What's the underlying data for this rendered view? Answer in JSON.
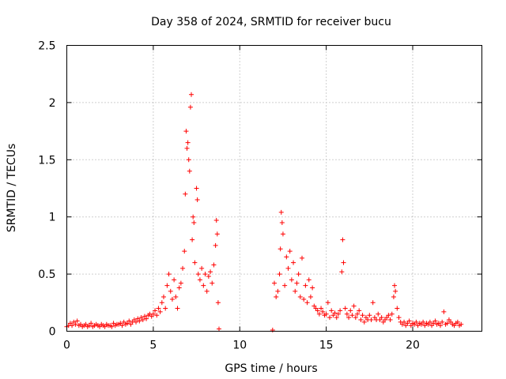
{
  "chart_data": {
    "type": "scatter",
    "title": "Day 358 of 2024, SRMTID for receiver bucu",
    "xlabel": "GPS time / hours",
    "ylabel": "SRMTID / TECUs",
    "xlim": [
      0,
      24
    ],
    "ylim": [
      0,
      2.5
    ],
    "xticks": [
      0,
      5,
      10,
      15,
      20
    ],
    "yticks": [
      0,
      0.5,
      1,
      1.5,
      2,
      2.5
    ],
    "xtick_labels": [
      "0",
      "5",
      "10",
      "15",
      "20"
    ],
    "ytick_labels": [
      "0",
      "0.5",
      "1",
      "1.5",
      "2",
      "2.5"
    ],
    "grid": true,
    "marker": "plus",
    "color": "#ff0000",
    "series": [
      {
        "points": [
          [
            0.0,
            0.04
          ],
          [
            0.1,
            0.05
          ],
          [
            0.2,
            0.07
          ],
          [
            0.3,
            0.05
          ],
          [
            0.4,
            0.08
          ],
          [
            0.5,
            0.06
          ],
          [
            0.6,
            0.09
          ],
          [
            0.7,
            0.05
          ],
          [
            0.8,
            0.06
          ],
          [
            0.9,
            0.04
          ],
          [
            1.0,
            0.05
          ],
          [
            1.1,
            0.06
          ],
          [
            1.2,
            0.04
          ],
          [
            1.3,
            0.05
          ],
          [
            1.4,
            0.07
          ],
          [
            1.5,
            0.04
          ],
          [
            1.6,
            0.05
          ],
          [
            1.7,
            0.06
          ],
          [
            1.8,
            0.05
          ],
          [
            1.9,
            0.04
          ],
          [
            2.0,
            0.06
          ],
          [
            2.1,
            0.05
          ],
          [
            2.2,
            0.04
          ],
          [
            2.3,
            0.06
          ],
          [
            2.4,
            0.05
          ],
          [
            2.5,
            0.05
          ],
          [
            2.6,
            0.04
          ],
          [
            2.7,
            0.07
          ],
          [
            2.8,
            0.05
          ],
          [
            2.9,
            0.06
          ],
          [
            3.0,
            0.06
          ],
          [
            3.1,
            0.07
          ],
          [
            3.2,
            0.05
          ],
          [
            3.3,
            0.08
          ],
          [
            3.4,
            0.06
          ],
          [
            3.5,
            0.07
          ],
          [
            3.6,
            0.09
          ],
          [
            3.7,
            0.06
          ],
          [
            3.8,
            0.08
          ],
          [
            3.9,
            0.1
          ],
          [
            4.0,
            0.08
          ],
          [
            4.1,
            0.11
          ],
          [
            4.2,
            0.09
          ],
          [
            4.3,
            0.12
          ],
          [
            4.4,
            0.1
          ],
          [
            4.5,
            0.13
          ],
          [
            4.6,
            0.11
          ],
          [
            4.7,
            0.14
          ],
          [
            4.8,
            0.15
          ],
          [
            4.9,
            0.13
          ],
          [
            5.0,
            0.15
          ],
          [
            5.1,
            0.18
          ],
          [
            5.2,
            0.14
          ],
          [
            5.3,
            0.2
          ],
          [
            5.4,
            0.17
          ],
          [
            5.5,
            0.25
          ],
          [
            5.6,
            0.3
          ],
          [
            5.7,
            0.2
          ],
          [
            5.8,
            0.4
          ],
          [
            5.9,
            0.5
          ],
          [
            6.0,
            0.35
          ],
          [
            6.1,
            0.28
          ],
          [
            6.2,
            0.45
          ],
          [
            6.3,
            0.3
          ],
          [
            6.4,
            0.2
          ],
          [
            6.5,
            0.38
          ],
          [
            6.6,
            0.42
          ],
          [
            6.7,
            0.55
          ],
          [
            6.8,
            0.7
          ],
          [
            6.85,
            1.2
          ],
          [
            6.9,
            1.75
          ],
          [
            6.95,
            1.6
          ],
          [
            7.0,
            1.65
          ],
          [
            7.05,
            1.5
          ],
          [
            7.1,
            1.4
          ],
          [
            7.15,
            1.96
          ],
          [
            7.2,
            2.07
          ],
          [
            7.25,
            0.8
          ],
          [
            7.3,
            1.0
          ],
          [
            7.35,
            0.95
          ],
          [
            7.4,
            0.6
          ],
          [
            7.5,
            1.25
          ],
          [
            7.55,
            1.15
          ],
          [
            7.6,
            0.5
          ],
          [
            7.7,
            0.45
          ],
          [
            7.8,
            0.55
          ],
          [
            7.9,
            0.4
          ],
          [
            8.0,
            0.5
          ],
          [
            8.1,
            0.35
          ],
          [
            8.2,
            0.48
          ],
          [
            8.3,
            0.52
          ],
          [
            8.4,
            0.42
          ],
          [
            8.5,
            0.58
          ],
          [
            8.6,
            0.75
          ],
          [
            8.65,
            0.97
          ],
          [
            8.7,
            0.85
          ],
          [
            8.75,
            0.25
          ],
          [
            8.8,
            0.02
          ],
          [
            11.9,
            0.01
          ],
          [
            12.0,
            0.42
          ],
          [
            12.1,
            0.3
          ],
          [
            12.2,
            0.35
          ],
          [
            12.3,
            0.5
          ],
          [
            12.35,
            0.72
          ],
          [
            12.4,
            1.04
          ],
          [
            12.45,
            0.95
          ],
          [
            12.5,
            0.85
          ],
          [
            12.6,
            0.4
          ],
          [
            12.7,
            0.65
          ],
          [
            12.8,
            0.55
          ],
          [
            12.9,
            0.7
          ],
          [
            13.0,
            0.45
          ],
          [
            13.1,
            0.6
          ],
          [
            13.2,
            0.35
          ],
          [
            13.3,
            0.42
          ],
          [
            13.4,
            0.5
          ],
          [
            13.5,
            0.3
          ],
          [
            13.6,
            0.64
          ],
          [
            13.7,
            0.28
          ],
          [
            13.8,
            0.4
          ],
          [
            13.9,
            0.25
          ],
          [
            14.0,
            0.45
          ],
          [
            14.1,
            0.3
          ],
          [
            14.2,
            0.38
          ],
          [
            14.3,
            0.22
          ],
          [
            14.4,
            0.2
          ],
          [
            14.5,
            0.18
          ],
          [
            14.6,
            0.15
          ],
          [
            14.7,
            0.2
          ],
          [
            14.8,
            0.17
          ],
          [
            14.9,
            0.14
          ],
          [
            15.0,
            0.15
          ],
          [
            15.1,
            0.25
          ],
          [
            15.2,
            0.12
          ],
          [
            15.3,
            0.18
          ],
          [
            15.4,
            0.14
          ],
          [
            15.5,
            0.16
          ],
          [
            15.6,
            0.12
          ],
          [
            15.7,
            0.15
          ],
          [
            15.8,
            0.18
          ],
          [
            15.9,
            0.52
          ],
          [
            15.95,
            0.8
          ],
          [
            16.0,
            0.6
          ],
          [
            16.1,
            0.2
          ],
          [
            16.2,
            0.15
          ],
          [
            16.3,
            0.12
          ],
          [
            16.4,
            0.18
          ],
          [
            16.5,
            0.14
          ],
          [
            16.6,
            0.22
          ],
          [
            16.7,
            0.12
          ],
          [
            16.8,
            0.15
          ],
          [
            16.9,
            0.18
          ],
          [
            17.0,
            0.1
          ],
          [
            17.1,
            0.14
          ],
          [
            17.2,
            0.08
          ],
          [
            17.3,
            0.12
          ],
          [
            17.4,
            0.1
          ],
          [
            17.5,
            0.14
          ],
          [
            17.6,
            0.1
          ],
          [
            17.7,
            0.25
          ],
          [
            17.8,
            0.12
          ],
          [
            17.9,
            0.1
          ],
          [
            18.0,
            0.15
          ],
          [
            18.1,
            0.1
          ],
          [
            18.2,
            0.12
          ],
          [
            18.3,
            0.08
          ],
          [
            18.4,
            0.1
          ],
          [
            18.5,
            0.12
          ],
          [
            18.6,
            0.14
          ],
          [
            18.7,
            0.1
          ],
          [
            18.8,
            0.15
          ],
          [
            18.9,
            0.3
          ],
          [
            18.95,
            0.4
          ],
          [
            19.0,
            0.35
          ],
          [
            19.1,
            0.2
          ],
          [
            19.2,
            0.12
          ],
          [
            19.3,
            0.08
          ],
          [
            19.4,
            0.06
          ],
          [
            19.5,
            0.08
          ],
          [
            19.6,
            0.05
          ],
          [
            19.7,
            0.07
          ],
          [
            19.8,
            0.09
          ],
          [
            19.9,
            0.05
          ],
          [
            20.0,
            0.07
          ],
          [
            20.1,
            0.06
          ],
          [
            20.2,
            0.08
          ],
          [
            20.3,
            0.05
          ],
          [
            20.4,
            0.07
          ],
          [
            20.5,
            0.06
          ],
          [
            20.6,
            0.08
          ],
          [
            20.7,
            0.05
          ],
          [
            20.8,
            0.07
          ],
          [
            20.9,
            0.06
          ],
          [
            21.0,
            0.08
          ],
          [
            21.1,
            0.05
          ],
          [
            21.2,
            0.07
          ],
          [
            21.3,
            0.09
          ],
          [
            21.4,
            0.06
          ],
          [
            21.5,
            0.07
          ],
          [
            21.6,
            0.05
          ],
          [
            21.7,
            0.08
          ],
          [
            21.8,
            0.17
          ],
          [
            21.9,
            0.06
          ],
          [
            22.0,
            0.07
          ],
          [
            22.1,
            0.1
          ],
          [
            22.2,
            0.08
          ],
          [
            22.3,
            0.06
          ],
          [
            22.4,
            0.05
          ],
          [
            22.5,
            0.07
          ],
          [
            22.6,
            0.08
          ],
          [
            22.7,
            0.05
          ],
          [
            22.8,
            0.06
          ]
        ]
      }
    ]
  }
}
